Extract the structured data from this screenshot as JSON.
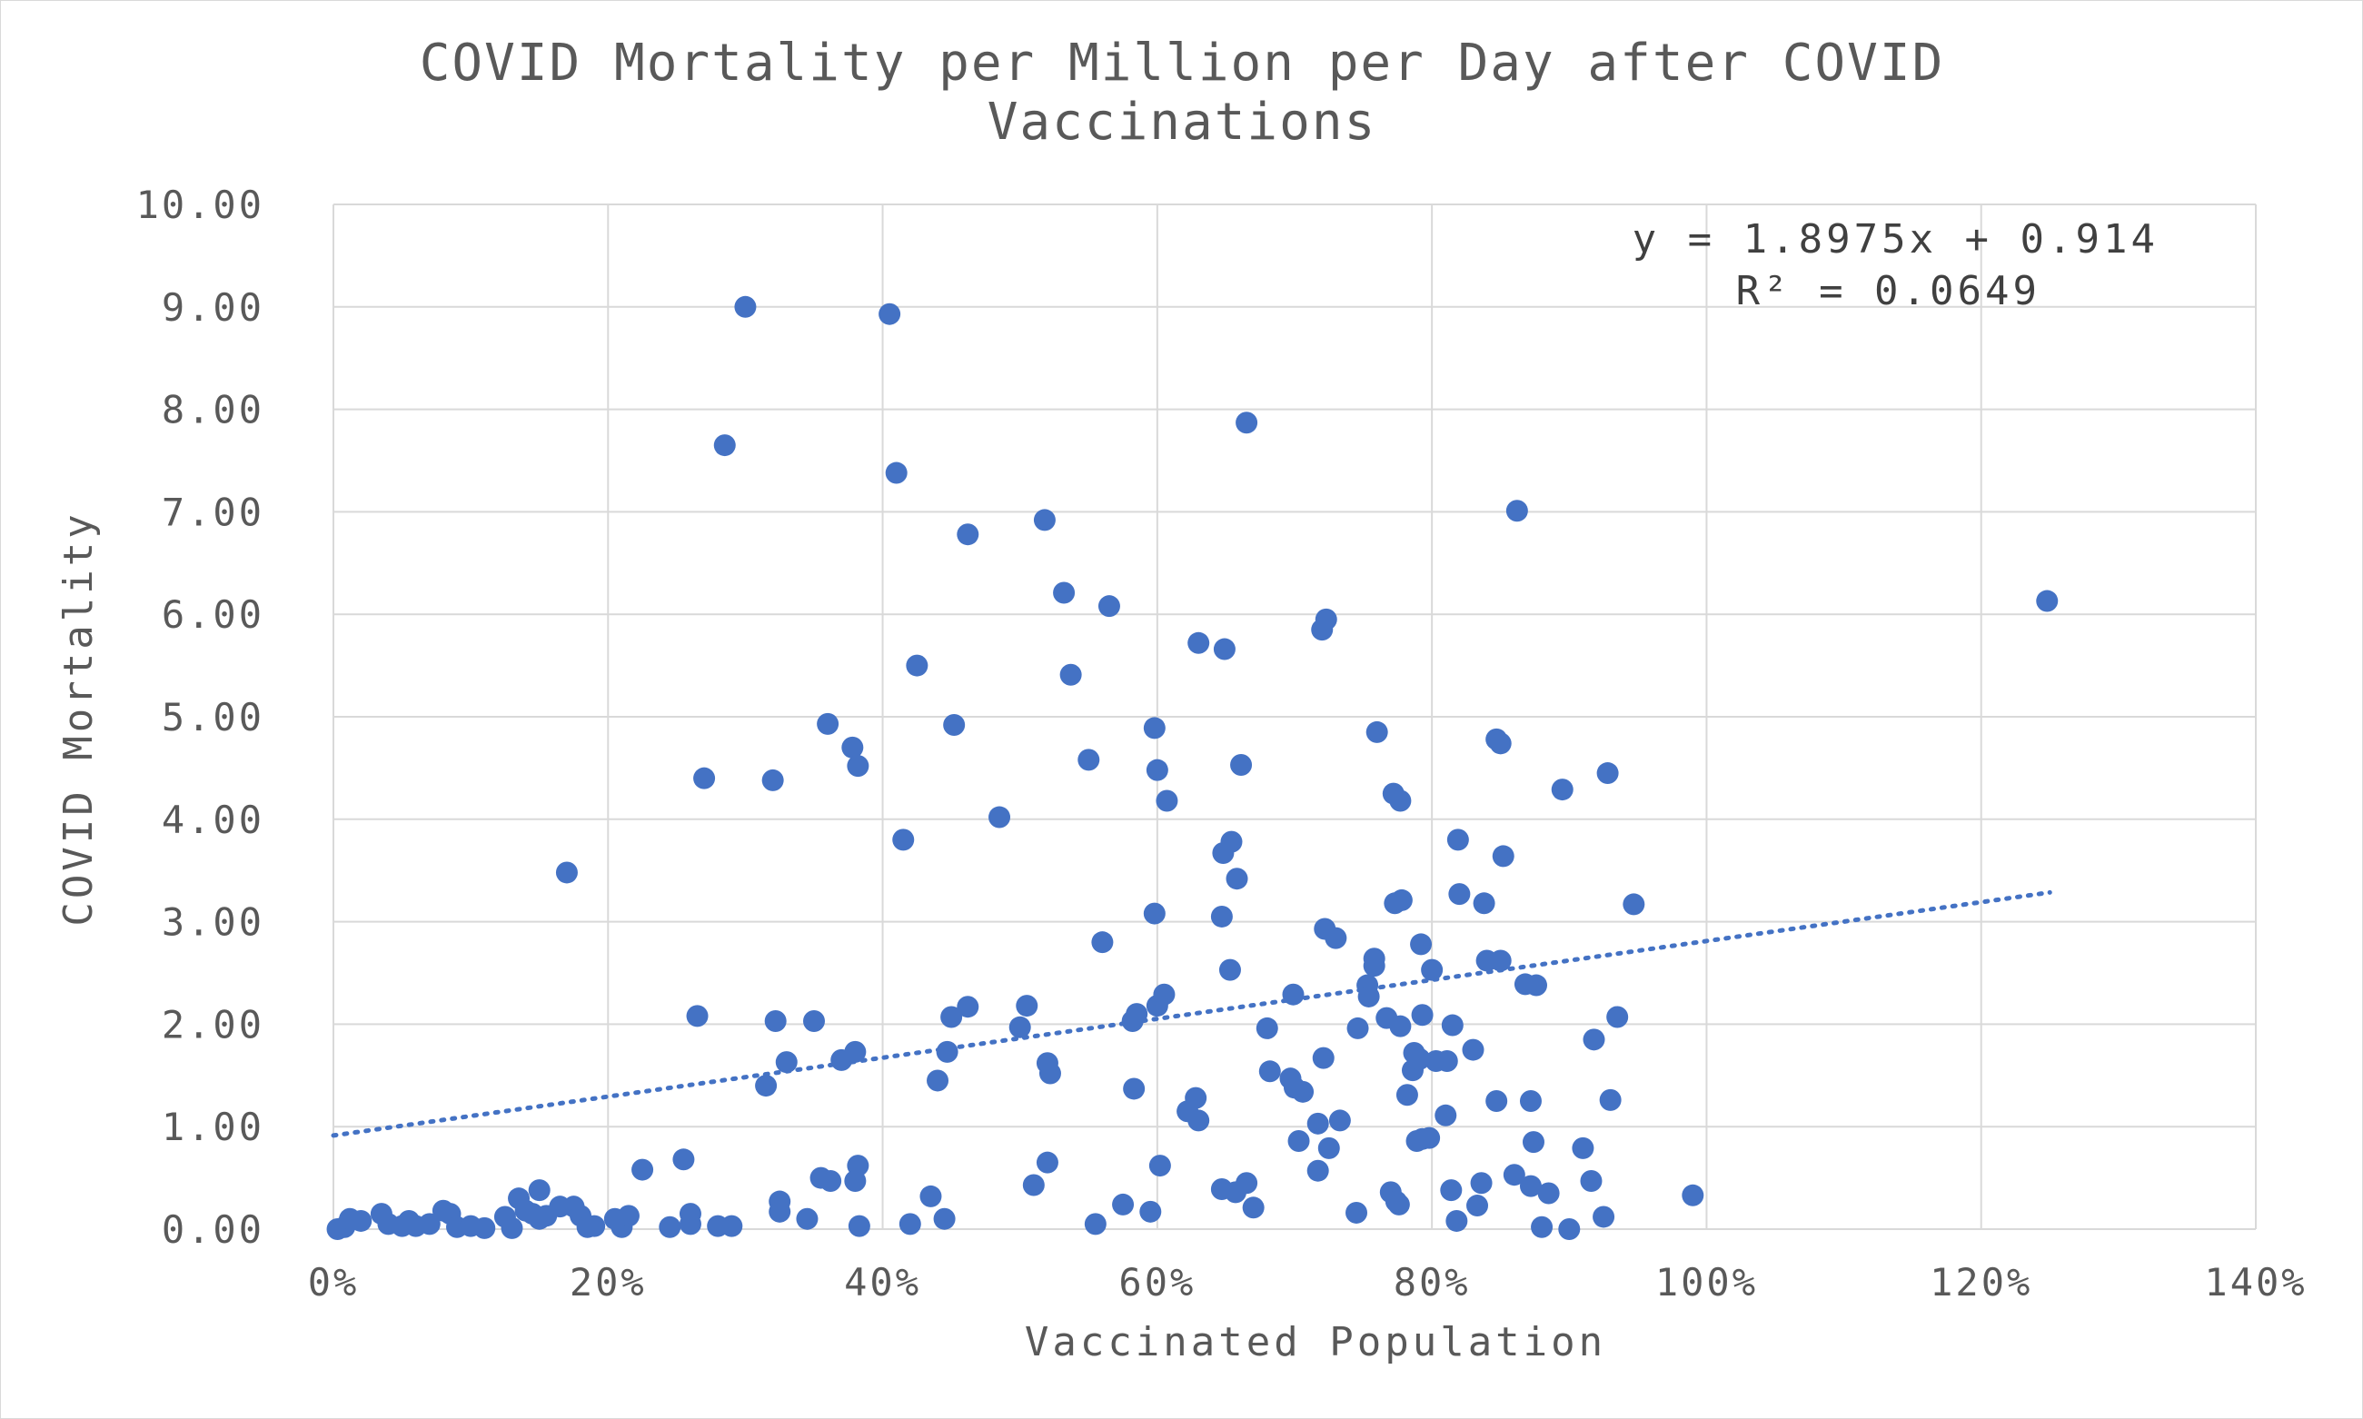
{
  "chart_data": {
    "type": "scatter",
    "title": "COVID Mortality per Million per Day after COVID Vaccinations",
    "title_lines": [
      "COVID Mortality per Million per Day after COVID",
      "Vaccinations"
    ],
    "xlabel": "Vaccinated Population",
    "ylabel": "COVID Mortality",
    "xlim": [
      0,
      1.4
    ],
    "ylim": [
      0,
      10
    ],
    "x_ticks": [
      "0%",
      "20%",
      "40%",
      "60%",
      "80%",
      "100%",
      "120%",
      "140%"
    ],
    "y_ticks": [
      "0.00",
      "1.00",
      "2.00",
      "3.00",
      "4.00",
      "5.00",
      "6.00",
      "7.00",
      "8.00",
      "9.00",
      "10.00"
    ],
    "grid": true,
    "legend": "none",
    "point_color": "#4472c4",
    "trendline": {
      "type": "linear",
      "slope": 1.8975,
      "intercept": 0.914,
      "x_range": [
        0,
        1.25
      ],
      "style": "dotted",
      "color": "#4472c4",
      "equation": "y = 1.8975x + 0.914",
      "r_squared": "R² = 0.0649"
    },
    "points": [
      [
        0.003,
        0.0
      ],
      [
        0.008,
        0.02
      ],
      [
        0.012,
        0.1
      ],
      [
        0.02,
        0.08
      ],
      [
        0.035,
        0.15
      ],
      [
        0.04,
        0.05
      ],
      [
        0.05,
        0.03
      ],
      [
        0.055,
        0.08
      ],
      [
        0.06,
        0.03
      ],
      [
        0.07,
        0.05
      ],
      [
        0.08,
        0.18
      ],
      [
        0.085,
        0.15
      ],
      [
        0.09,
        0.02
      ],
      [
        0.1,
        0.03
      ],
      [
        0.11,
        0.01
      ],
      [
        0.125,
        0.12
      ],
      [
        0.13,
        0.01
      ],
      [
        0.135,
        0.3
      ],
      [
        0.14,
        0.18
      ],
      [
        0.145,
        0.15
      ],
      [
        0.15,
        0.1
      ],
      [
        0.15,
        0.38
      ],
      [
        0.155,
        0.13
      ],
      [
        0.165,
        0.22
      ],
      [
        0.17,
        3.48
      ],
      [
        0.175,
        0.22
      ],
      [
        0.18,
        0.13
      ],
      [
        0.185,
        0.02
      ],
      [
        0.19,
        0.03
      ],
      [
        0.205,
        0.1
      ],
      [
        0.21,
        0.02
      ],
      [
        0.215,
        0.13
      ],
      [
        0.225,
        0.58
      ],
      [
        0.245,
        0.02
      ],
      [
        0.255,
        0.68
      ],
      [
        0.26,
        0.15
      ],
      [
        0.26,
        0.05
      ],
      [
        0.265,
        2.08
      ],
      [
        0.27,
        4.4
      ],
      [
        0.28,
        0.03
      ],
      [
        0.285,
        7.65
      ],
      [
        0.29,
        0.03
      ],
      [
        0.3,
        9.0
      ],
      [
        0.315,
        1.4
      ],
      [
        0.32,
        4.38
      ],
      [
        0.322,
        2.03
      ],
      [
        0.325,
        0.27
      ],
      [
        0.325,
        0.17
      ],
      [
        0.33,
        1.63
      ],
      [
        0.345,
        0.1
      ],
      [
        0.35,
        2.03
      ],
      [
        0.355,
        0.5
      ],
      [
        0.36,
        4.93
      ],
      [
        0.362,
        0.47
      ],
      [
        0.37,
        1.65
      ],
      [
        0.378,
        4.7
      ],
      [
        0.38,
        0.47
      ],
      [
        0.38,
        1.73
      ],
      [
        0.382,
        4.52
      ],
      [
        0.382,
        0.62
      ],
      [
        0.383,
        0.03
      ],
      [
        0.405,
        8.93
      ],
      [
        0.41,
        7.38
      ],
      [
        0.415,
        3.8
      ],
      [
        0.42,
        0.05
      ],
      [
        0.425,
        5.5
      ],
      [
        0.435,
        0.32
      ],
      [
        0.44,
        1.45
      ],
      [
        0.445,
        0.1
      ],
      [
        0.447,
        1.73
      ],
      [
        0.45,
        2.07
      ],
      [
        0.452,
        4.92
      ],
      [
        0.462,
        6.78
      ],
      [
        0.462,
        2.17
      ],
      [
        0.485,
        4.02
      ],
      [
        0.5,
        1.97
      ],
      [
        0.505,
        2.18
      ],
      [
        0.51,
        0.43
      ],
      [
        0.518,
        6.92
      ],
      [
        0.52,
        1.62
      ],
      [
        0.52,
        0.65
      ],
      [
        0.522,
        1.52
      ],
      [
        0.532,
        6.21
      ],
      [
        0.537,
        5.41
      ],
      [
        0.55,
        4.58
      ],
      [
        0.555,
        0.05
      ],
      [
        0.56,
        2.8
      ],
      [
        0.565,
        6.08
      ],
      [
        0.575,
        0.24
      ],
      [
        0.582,
        2.03
      ],
      [
        0.583,
        1.37
      ],
      [
        0.585,
        2.1
      ],
      [
        0.595,
        0.17
      ],
      [
        0.598,
        3.08
      ],
      [
        0.598,
        4.89
      ],
      [
        0.6,
        2.18
      ],
      [
        0.6,
        4.48
      ],
      [
        0.602,
        0.62
      ],
      [
        0.605,
        2.29
      ],
      [
        0.607,
        4.18
      ],
      [
        0.622,
        1.15
      ],
      [
        0.628,
        1.28
      ],
      [
        0.63,
        5.72
      ],
      [
        0.63,
        1.06
      ],
      [
        0.647,
        0.39
      ],
      [
        0.647,
        3.05
      ],
      [
        0.648,
        3.67
      ],
      [
        0.649,
        5.66
      ],
      [
        0.653,
        2.53
      ],
      [
        0.654,
        3.78
      ],
      [
        0.657,
        0.36
      ],
      [
        0.658,
        3.42
      ],
      [
        0.661,
        4.53
      ],
      [
        0.665,
        7.87
      ],
      [
        0.665,
        0.45
      ],
      [
        0.67,
        0.21
      ],
      [
        0.68,
        1.96
      ],
      [
        0.682,
        1.54
      ],
      [
        0.697,
        1.47
      ],
      [
        0.699,
        2.29
      ],
      [
        0.7,
        1.38
      ],
      [
        0.703,
        0.86
      ],
      [
        0.706,
        1.34
      ],
      [
        0.717,
        1.03
      ],
      [
        0.717,
        0.57
      ],
      [
        0.72,
        5.85
      ],
      [
        0.721,
        1.67
      ],
      [
        0.722,
        2.93
      ],
      [
        0.723,
        5.95
      ],
      [
        0.725,
        0.79
      ],
      [
        0.73,
        2.84
      ],
      [
        0.733,
        1.06
      ],
      [
        0.745,
        0.16
      ],
      [
        0.746,
        1.96
      ],
      [
        0.753,
        2.38
      ],
      [
        0.754,
        2.27
      ],
      [
        0.758,
        2.64
      ],
      [
        0.758,
        2.57
      ],
      [
        0.76,
        4.85
      ],
      [
        0.767,
        2.06
      ],
      [
        0.77,
        0.36
      ],
      [
        0.772,
        4.25
      ],
      [
        0.773,
        3.18
      ],
      [
        0.774,
        0.27
      ],
      [
        0.776,
        0.24
      ],
      [
        0.777,
        1.98
      ],
      [
        0.777,
        4.18
      ],
      [
        0.778,
        3.21
      ],
      [
        0.782,
        1.31
      ],
      [
        0.786,
        1.55
      ],
      [
        0.787,
        1.72
      ],
      [
        0.789,
        0.86
      ],
      [
        0.791,
        1.66
      ],
      [
        0.792,
        2.78
      ],
      [
        0.793,
        2.09
      ],
      [
        0.793,
        0.88
      ],
      [
        0.798,
        0.89
      ],
      [
        0.8,
        2.53
      ],
      [
        0.803,
        1.64
      ],
      [
        0.81,
        1.11
      ],
      [
        0.811,
        1.64
      ],
      [
        0.814,
        0.38
      ],
      [
        0.815,
        1.99
      ],
      [
        0.818,
        0.08
      ],
      [
        0.819,
        3.8
      ],
      [
        0.82,
        3.27
      ],
      [
        0.83,
        1.75
      ],
      [
        0.833,
        0.23
      ],
      [
        0.836,
        0.45
      ],
      [
        0.838,
        3.18
      ],
      [
        0.84,
        2.62
      ],
      [
        0.847,
        4.78
      ],
      [
        0.847,
        1.25
      ],
      [
        0.85,
        2.62
      ],
      [
        0.85,
        4.74
      ],
      [
        0.852,
        3.64
      ],
      [
        0.86,
        0.53
      ],
      [
        0.862,
        7.01
      ],
      [
        0.868,
        2.39
      ],
      [
        0.872,
        1.25
      ],
      [
        0.872,
        0.42
      ],
      [
        0.874,
        0.85
      ],
      [
        0.876,
        2.38
      ],
      [
        0.88,
        0.02
      ],
      [
        0.885,
        0.35
      ],
      [
        0.895,
        4.29
      ],
      [
        0.9,
        0.0
      ],
      [
        0.91,
        0.79
      ],
      [
        0.916,
        0.47
      ],
      [
        0.918,
        1.85
      ],
      [
        0.925,
        0.12
      ],
      [
        0.928,
        4.45
      ],
      [
        0.93,
        1.26
      ],
      [
        0.935,
        2.07
      ],
      [
        0.947,
        3.17
      ],
      [
        0.99,
        0.33
      ],
      [
        1.248,
        6.13
      ]
    ]
  }
}
